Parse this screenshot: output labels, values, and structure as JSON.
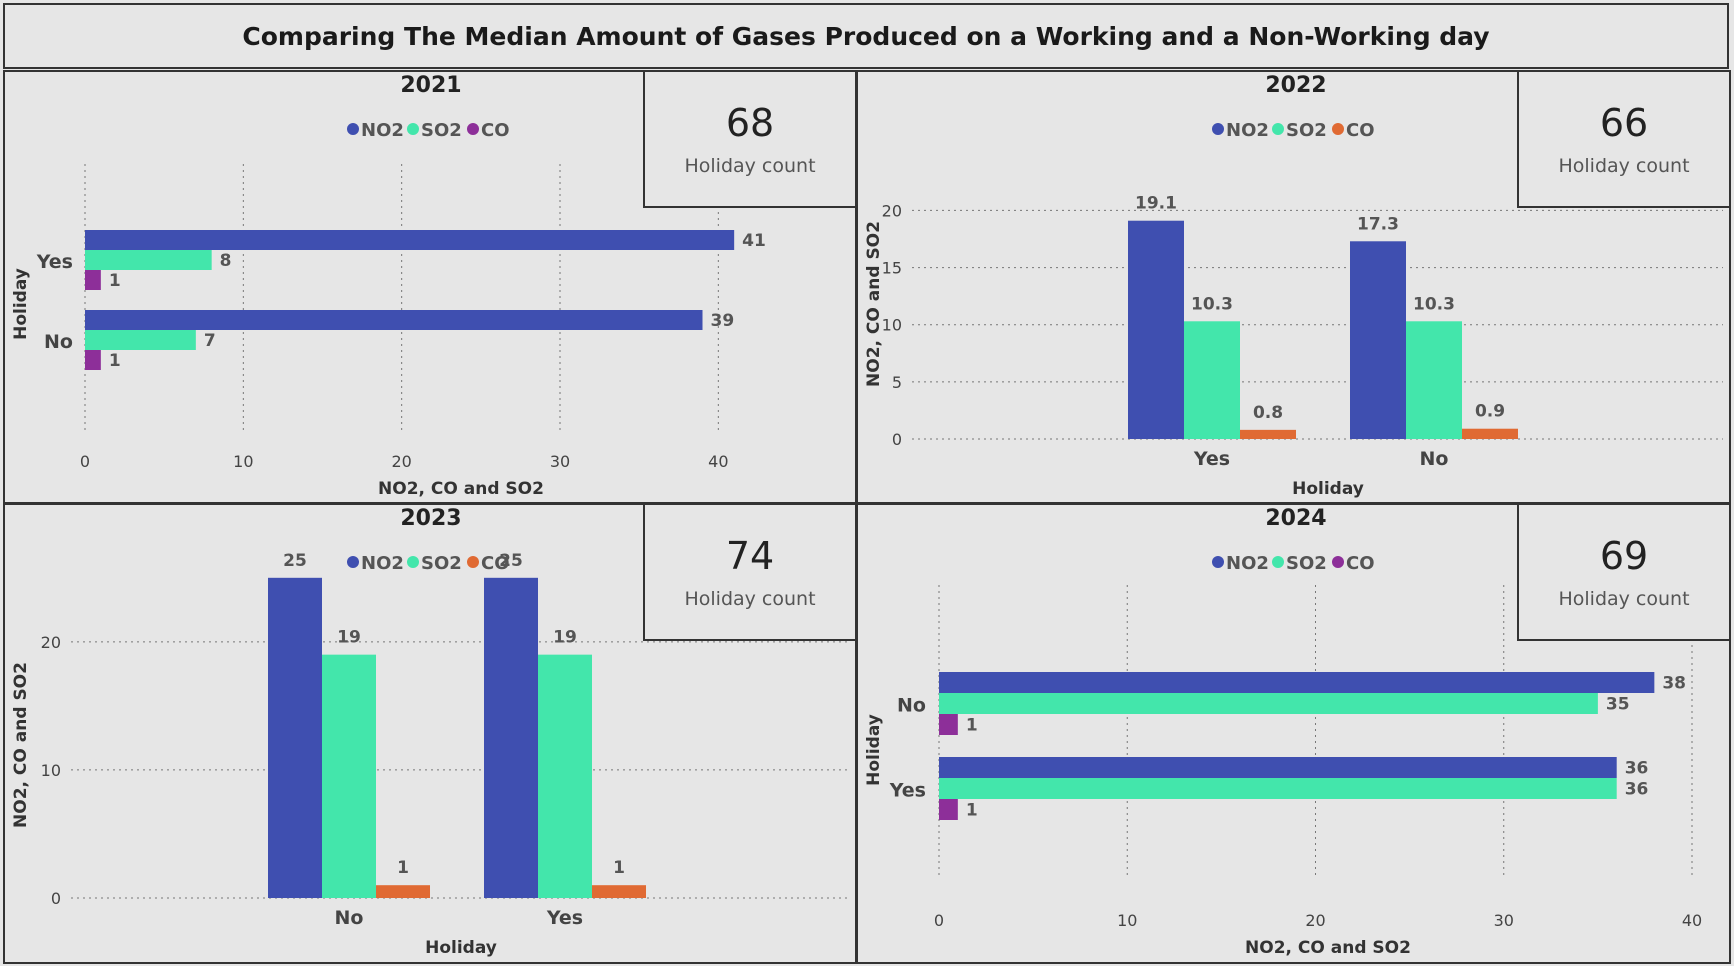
{
  "title": "Comparing The Median Amount of Gases Produced on a Working and a Non-Working day",
  "colors": {
    "NO2": "#3f4fb0",
    "SO2": "#43e6ab",
    "CO_purple": "#8d2f99",
    "CO_orange": "#e06a33"
  },
  "panels": [
    {
      "card": {
        "value": "68",
        "label": "Holiday count"
      }
    },
    {
      "card": {
        "value": "66",
        "label": "Holiday count"
      }
    },
    {
      "card": {
        "value": "74",
        "label": "Holiday count"
      }
    },
    {
      "card": {
        "value": "69",
        "label": "Holiday count"
      }
    }
  ],
  "chart_data": [
    {
      "type": "bar",
      "orientation": "horizontal",
      "title": "2021",
      "categories": [
        "Yes",
        "No"
      ],
      "series": [
        {
          "name": "NO2",
          "values": [
            41,
            39
          ],
          "color": "#3f4fb0"
        },
        {
          "name": "SO2",
          "values": [
            8,
            7
          ],
          "color": "#43e6ab"
        },
        {
          "name": "CO",
          "values": [
            1,
            1
          ],
          "color": "#8d2f99"
        }
      ],
      "data_labels": [
        [
          "41",
          "39"
        ],
        [
          "8",
          "7"
        ],
        [
          "1",
          "1"
        ]
      ],
      "xlabel": "NO2, CO and SO2",
      "ylabel": "Holiday",
      "ticks": [
        0,
        10,
        20,
        30,
        40
      ],
      "xlim": [
        0,
        42
      ],
      "grid": true,
      "legend": "top"
    },
    {
      "type": "bar",
      "orientation": "vertical",
      "title": "2022",
      "categories": [
        "Yes",
        "No"
      ],
      "series": [
        {
          "name": "NO2",
          "values": [
            19.1,
            17.3
          ],
          "color": "#3f4fb0"
        },
        {
          "name": "SO2",
          "values": [
            10.3,
            10.3
          ],
          "color": "#43e6ab"
        },
        {
          "name": "CO",
          "values": [
            0.8,
            0.9
          ],
          "color": "#e06a33"
        }
      ],
      "data_labels": [
        [
          "19.1",
          "17.3"
        ],
        [
          "10.3",
          "10.3"
        ],
        [
          "0.8",
          "0.9"
        ]
      ],
      "xlabel": "Holiday",
      "ylabel": "NO2, CO and SO2",
      "ticks": [
        0,
        5,
        10,
        15,
        20
      ],
      "ylim": [
        0,
        21
      ],
      "grid": true,
      "legend": "top"
    },
    {
      "type": "bar",
      "orientation": "vertical",
      "title": "2023",
      "categories": [
        "No",
        "Yes"
      ],
      "series": [
        {
          "name": "NO2",
          "values": [
            25,
            25
          ],
          "color": "#3f4fb0"
        },
        {
          "name": "SO2",
          "values": [
            19,
            19
          ],
          "color": "#43e6ab"
        },
        {
          "name": "CO",
          "values": [
            1,
            1
          ],
          "color": "#e06a33"
        }
      ],
      "data_labels": [
        [
          "25",
          "25"
        ],
        [
          "19",
          "19"
        ],
        [
          "1",
          "1"
        ]
      ],
      "xlabel": "Holiday",
      "ylabel": "NO2, CO and SO2",
      "ticks": [
        0,
        10,
        20
      ],
      "ylim": [
        0,
        26
      ],
      "grid": true,
      "legend": "top"
    },
    {
      "type": "bar",
      "orientation": "horizontal",
      "title": "2024",
      "categories": [
        "No",
        "Yes"
      ],
      "series": [
        {
          "name": "NO2",
          "values": [
            38,
            36
          ],
          "color": "#3f4fb0"
        },
        {
          "name": "SO2",
          "values": [
            35,
            36
          ],
          "color": "#43e6ab"
        },
        {
          "name": "CO",
          "values": [
            1,
            1
          ],
          "color": "#8d2f99"
        }
      ],
      "data_labels": [
        [
          "38",
          "36"
        ],
        [
          "35",
          "36"
        ],
        [
          "1",
          "1"
        ]
      ],
      "xlabel": "NO2, CO and SO2",
      "ylabel": "Holiday",
      "ticks": [
        0,
        10,
        20,
        30,
        40
      ],
      "xlim": [
        0,
        40
      ],
      "grid": true,
      "legend": "top"
    }
  ]
}
